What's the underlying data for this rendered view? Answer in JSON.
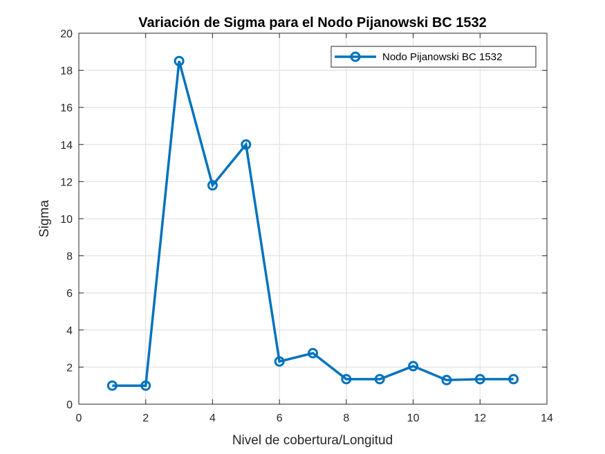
{
  "chart_data": {
    "type": "line",
    "title": "Variación de Sigma para el Nodo Pijanowski BC 1532",
    "xlabel": "Nivel de cobertura/Longitud",
    "ylabel": "Sigma",
    "xlim": [
      0,
      14
    ],
    "ylim": [
      0,
      20
    ],
    "xticks": [
      0,
      2,
      4,
      6,
      8,
      10,
      12,
      14
    ],
    "yticks": [
      0,
      2,
      4,
      6,
      8,
      10,
      12,
      14,
      16,
      18,
      20
    ],
    "grid": true,
    "legend_position": "top-right",
    "series": [
      {
        "name": "Nodo Pijanowski BC 1532",
        "color": "#0072BD",
        "marker": "circle",
        "x": [
          1,
          2,
          3,
          4,
          5,
          6,
          7,
          8,
          9,
          10,
          11,
          12,
          13
        ],
        "y": [
          1.0,
          1.0,
          18.5,
          11.8,
          14.0,
          2.3,
          2.75,
          1.35,
          1.35,
          2.05,
          1.3,
          1.35,
          1.35
        ]
      }
    ]
  }
}
